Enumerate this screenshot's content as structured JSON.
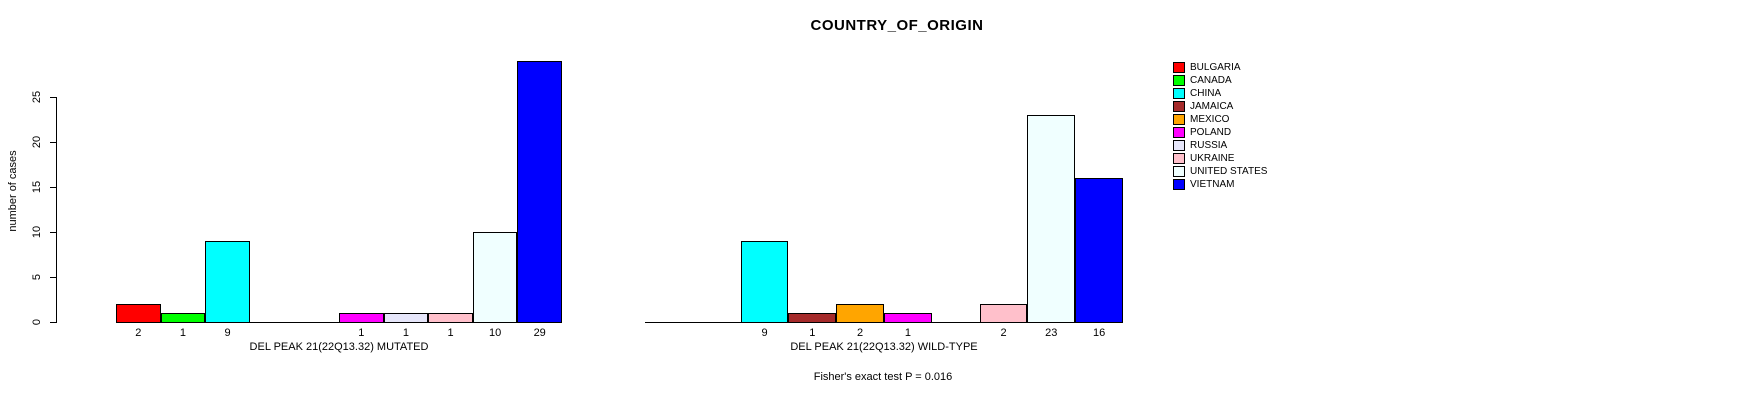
{
  "chart_data": {
    "type": "bar",
    "title": "COUNTRY_OF_ORIGIN",
    "ylabel": "number of cases",
    "xlabel": "",
    "ylim": [
      0,
      29
    ],
    "yticks": [
      0,
      5,
      10,
      15,
      20,
      25
    ],
    "grid": false,
    "legend_position": "right",
    "bar_border_color": "#000000",
    "categories": [
      "BULGARIA",
      "CANADA",
      "CHINA",
      "JAMAICA",
      "MEXICO",
      "POLAND",
      "RUSSIA",
      "UKRAINE",
      "UNITED STATES",
      "VIETNAM"
    ],
    "colors": [
      "#FF0000",
      "#00FF00",
      "#00FFFF",
      "#A52A2A",
      "#FFA500",
      "#FF00FF",
      "#E6E6FA",
      "#FFC0CB",
      "#F0FFFF",
      "#0000FF"
    ],
    "series": [
      {
        "name": "DEL PEAK 21(22Q13.32) MUTATED",
        "values": [
          2,
          1,
          9,
          0,
          0,
          1,
          1,
          1,
          10,
          29
        ]
      },
      {
        "name": "DEL PEAK 21(22Q13.32) WILD-TYPE",
        "values": [
          0,
          0,
          9,
          1,
          2,
          1,
          0,
          2,
          23,
          16
        ]
      }
    ],
    "bar_value_labels_shown_for_nonzero_only": true,
    "annotation": "Fisher's exact test P = 0.016"
  }
}
